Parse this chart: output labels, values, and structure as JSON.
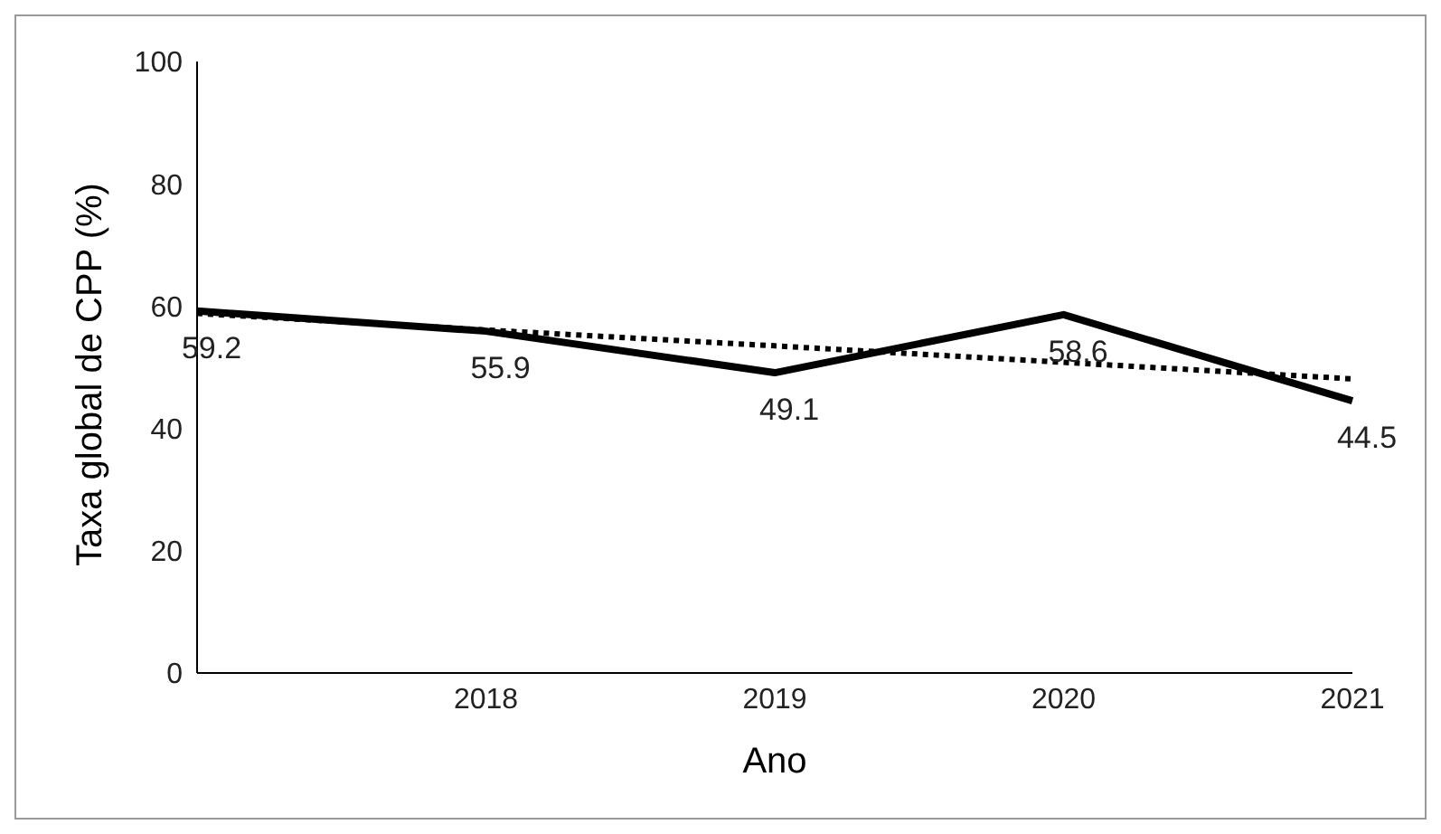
{
  "chart_data": {
    "type": "line",
    "xlabel": "Ano",
    "ylabel": "Taxa global de CPP (%)",
    "categories": [
      null,
      "2018",
      "2019",
      "2020",
      "2021"
    ],
    "series": [
      {
        "color": "#000000",
        "values": [
          59.2,
          55.9,
          49.1,
          58.6,
          44.5
        ],
        "line_style": "solid",
        "value_labels": [
          "59.2",
          "55.9",
          "49.1",
          "58.6",
          "44.5"
        ]
      },
      {
        "color": "#000000",
        "values": [
          58.8,
          56.1,
          53.5,
          50.8,
          48.1
        ],
        "line_style": "dotted"
      }
    ],
    "ylim": [
      0,
      100
    ],
    "yticks": [
      0,
      20,
      40,
      60,
      80,
      100
    ],
    "grid": false,
    "legend": false,
    "marker": "none"
  }
}
